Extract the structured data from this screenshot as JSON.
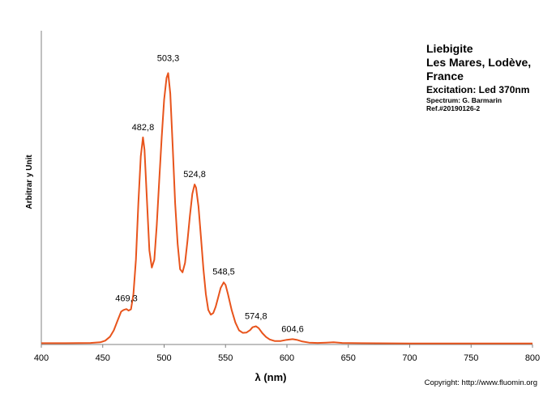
{
  "chart_data": {
    "type": "line",
    "title_lines": [
      "Liebigite",
      "Les Mares, Lodève,",
      "France"
    ],
    "excitation": "Excitation:  Led 370nm",
    "spectrum_credit": "Spectrum: G. Barmarin",
    "reference": "Ref.#20190126-2",
    "xlabel": "λ (nm)",
    "ylabel": "Arbitrar y Unit",
    "xlim": [
      400,
      800
    ],
    "ylim": [
      0,
      1
    ],
    "x_ticks": [
      "400",
      "450",
      "500",
      "550",
      "600",
      "650",
      "700",
      "750",
      "800"
    ],
    "grid": false,
    "line_color": "#E8541C",
    "copyright": "Copyright: http://www.fluomin.org",
    "peak_labels": [
      {
        "x": 469.3,
        "y": 0.115,
        "label": "469,3"
      },
      {
        "x": 482.8,
        "y": 0.66,
        "label": "482,8"
      },
      {
        "x": 503.3,
        "y": 0.88,
        "label": "503,3"
      },
      {
        "x": 524.8,
        "y": 0.51,
        "label": "524,8"
      },
      {
        "x": 548.5,
        "y": 0.2,
        "label": "548,5"
      },
      {
        "x": 574.8,
        "y": 0.058,
        "label": "574,8"
      },
      {
        "x": 604.6,
        "y": 0.017,
        "label": "604,6"
      }
    ],
    "series": [
      {
        "points": [
          [
            400,
            0.004
          ],
          [
            420,
            0.004
          ],
          [
            440,
            0.005
          ],
          [
            448,
            0.007
          ],
          [
            452,
            0.012
          ],
          [
            456,
            0.025
          ],
          [
            459,
            0.045
          ],
          [
            462,
            0.075
          ],
          [
            465,
            0.105
          ],
          [
            467,
            0.11
          ],
          [
            469.3,
            0.113
          ],
          [
            471,
            0.108
          ],
          [
            473,
            0.112
          ],
          [
            475,
            0.16
          ],
          [
            477,
            0.27
          ],
          [
            479,
            0.45
          ],
          [
            481,
            0.6
          ],
          [
            482.8,
            0.66
          ],
          [
            484,
            0.62
          ],
          [
            486,
            0.46
          ],
          [
            488,
            0.3
          ],
          [
            490,
            0.245
          ],
          [
            492,
            0.27
          ],
          [
            494,
            0.38
          ],
          [
            496,
            0.52
          ],
          [
            498,
            0.66
          ],
          [
            500,
            0.78
          ],
          [
            502,
            0.85
          ],
          [
            503.3,
            0.865
          ],
          [
            505,
            0.8
          ],
          [
            507,
            0.63
          ],
          [
            509,
            0.45
          ],
          [
            511,
            0.32
          ],
          [
            513,
            0.24
          ],
          [
            515,
            0.23
          ],
          [
            517,
            0.26
          ],
          [
            519,
            0.33
          ],
          [
            521,
            0.41
          ],
          [
            523,
            0.48
          ],
          [
            524.8,
            0.51
          ],
          [
            526,
            0.5
          ],
          [
            528,
            0.44
          ],
          [
            530,
            0.34
          ],
          [
            532,
            0.24
          ],
          [
            534,
            0.16
          ],
          [
            536,
            0.11
          ],
          [
            538,
            0.095
          ],
          [
            540,
            0.1
          ],
          [
            542,
            0.12
          ],
          [
            544,
            0.15
          ],
          [
            546,
            0.18
          ],
          [
            548.5,
            0.198
          ],
          [
            550,
            0.19
          ],
          [
            552,
            0.16
          ],
          [
            555,
            0.11
          ],
          [
            558,
            0.07
          ],
          [
            561,
            0.045
          ],
          [
            564,
            0.037
          ],
          [
            567,
            0.038
          ],
          [
            570,
            0.046
          ],
          [
            572,
            0.055
          ],
          [
            574.8,
            0.058
          ],
          [
            577,
            0.052
          ],
          [
            580,
            0.036
          ],
          [
            583,
            0.024
          ],
          [
            586,
            0.016
          ],
          [
            590,
            0.011
          ],
          [
            595,
            0.011
          ],
          [
            600,
            0.015
          ],
          [
            604.6,
            0.017
          ],
          [
            608,
            0.015
          ],
          [
            612,
            0.01
          ],
          [
            618,
            0.006
          ],
          [
            625,
            0.005
          ],
          [
            632,
            0.006
          ],
          [
            638,
            0.007
          ],
          [
            645,
            0.005
          ],
          [
            660,
            0.004
          ],
          [
            700,
            0.003
          ],
          [
            750,
            0.003
          ],
          [
            800,
            0.003
          ]
        ]
      }
    ]
  }
}
